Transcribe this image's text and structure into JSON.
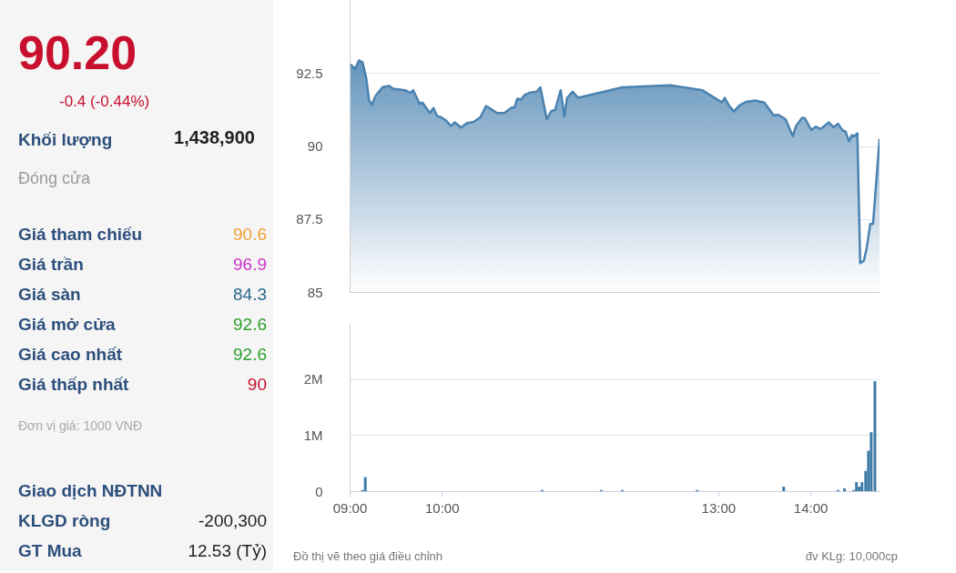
{
  "chart_data": [
    {
      "type": "other",
      "annotations": [
        "90.20",
        "-0.4 (-0.44%)",
        "Khối lượng",
        "1,438,900",
        "Đóng cửa",
        "Giá tham chiếu",
        "90.6",
        "Giá trần",
        "96.9",
        "Giá sàn",
        "84.3",
        "Giá mở cửa",
        "92.6",
        "Giá cao nhất",
        "92.6",
        "Giá thấp nhất",
        "90",
        "Đơn vị giá: 1000 VNĐ",
        "Giao dịch NĐTNN",
        "KLGD ròng",
        "-200,300",
        "GT Mua",
        "12.53 (Tỷ)"
      ]
    },
    {
      "type": "area",
      "x": [
        9.01,
        9.06,
        9.1,
        9.14,
        9.18,
        9.21,
        9.24,
        9.28,
        9.36,
        9.43,
        9.47,
        9.6,
        9.66,
        9.69,
        9.76,
        9.79,
        9.87,
        9.91,
        9.95,
        9.99,
        10.04,
        10.1,
        10.14,
        10.21,
        10.27,
        10.35,
        10.42,
        10.48,
        10.54,
        10.6,
        10.68,
        10.75,
        10.79,
        10.82,
        10.86,
        10.9,
        10.95,
        11.03,
        11.07,
        11.14,
        11.19,
        11.23,
        11.29,
        11.33,
        11.36,
        11.42,
        11.48,
        11.96,
        12.48,
        12.83,
        13.04,
        13.07,
        13.12,
        13.17,
        13.23,
        13.3,
        13.4,
        13.5,
        13.6,
        13.65,
        13.73,
        13.81,
        13.84,
        13.91,
        13.94,
        14.01,
        14.06,
        14.11,
        14.2,
        14.25,
        14.3,
        14.35,
        14.38,
        14.42,
        14.45,
        14.47,
        14.51,
        14.54,
        14.58,
        14.61,
        14.65,
        14.68,
        14.75
      ],
      "series": [
        {
          "color": "#4a82b0",
          "values": [
            92.79,
            92.64,
            92.93,
            92.87,
            92.33,
            91.59,
            91.4,
            91.71,
            92.02,
            92.06,
            91.96,
            91.91,
            91.82,
            91.91,
            91.44,
            91.49,
            91.13,
            91.3,
            91.02,
            90.99,
            90.89,
            90.68,
            90.81,
            90.63,
            90.78,
            90.83,
            90.99,
            91.37,
            91.25,
            91.13,
            91.13,
            91.3,
            91.33,
            91.62,
            91.59,
            91.75,
            91.82,
            91.86,
            92.01,
            90.92,
            91.2,
            91.23,
            91.91,
            91.02,
            91.65,
            91.86,
            91.65,
            92.01,
            92.08,
            91.91,
            91.49,
            91.65,
            91.37,
            91.18,
            91.39,
            91.51,
            91.56,
            91.49,
            91.05,
            91.07,
            90.92,
            90.33,
            90.66,
            90.97,
            90.95,
            90.55,
            90.66,
            90.58,
            90.81,
            90.64,
            90.76,
            90.53,
            90.5,
            90.16,
            90.37,
            90.33,
            90.43,
            85.99,
            86.07,
            86.49,
            87.33,
            87.33,
            90.24
          ]
        }
      ],
      "xlim": [
        9,
        14.75
      ],
      "ylim": [
        85,
        95
      ],
      "yticks": [
        85,
        87.5,
        90,
        92.5
      ],
      "grid": "y",
      "tick_labels": "y"
    },
    {
      "type": "bar",
      "x": [
        9.14,
        9.17,
        11.09,
        11.73,
        11.96,
        12.77,
        13.71,
        14.3,
        14.37,
        14.47,
        14.5,
        14.53,
        14.56,
        14.6,
        14.63,
        14.66,
        14.7
      ],
      "series": [
        {
          "color": "#3d7ba8",
          "values": [
            20000,
            250000,
            20000,
            20000,
            20000,
            20000,
            80000,
            20000,
            50000,
            20000,
            160000,
            80000,
            160000,
            360000,
            720000,
            1050000,
            1960000
          ]
        }
      ],
      "xlim": [
        9,
        14.75
      ],
      "xticks": [
        {
          "value": 9,
          "label": "09:00"
        },
        {
          "value": 10,
          "label": "10:00"
        },
        {
          "value": 13,
          "label": "13:00"
        },
        {
          "value": 14,
          "label": "14:00"
        }
      ],
      "ylim": [
        0,
        3000000
      ],
      "yticks": [
        0,
        {
          "value": 1000000,
          "label": "1M"
        },
        {
          "value": 2000000,
          "label": "2M"
        }
      ],
      "grid": "y",
      "annotations": [
        "Đồ thị vẽ theo giá điều chỉnh",
        "đv KLg: 10,000cp"
      ]
    }
  ]
}
